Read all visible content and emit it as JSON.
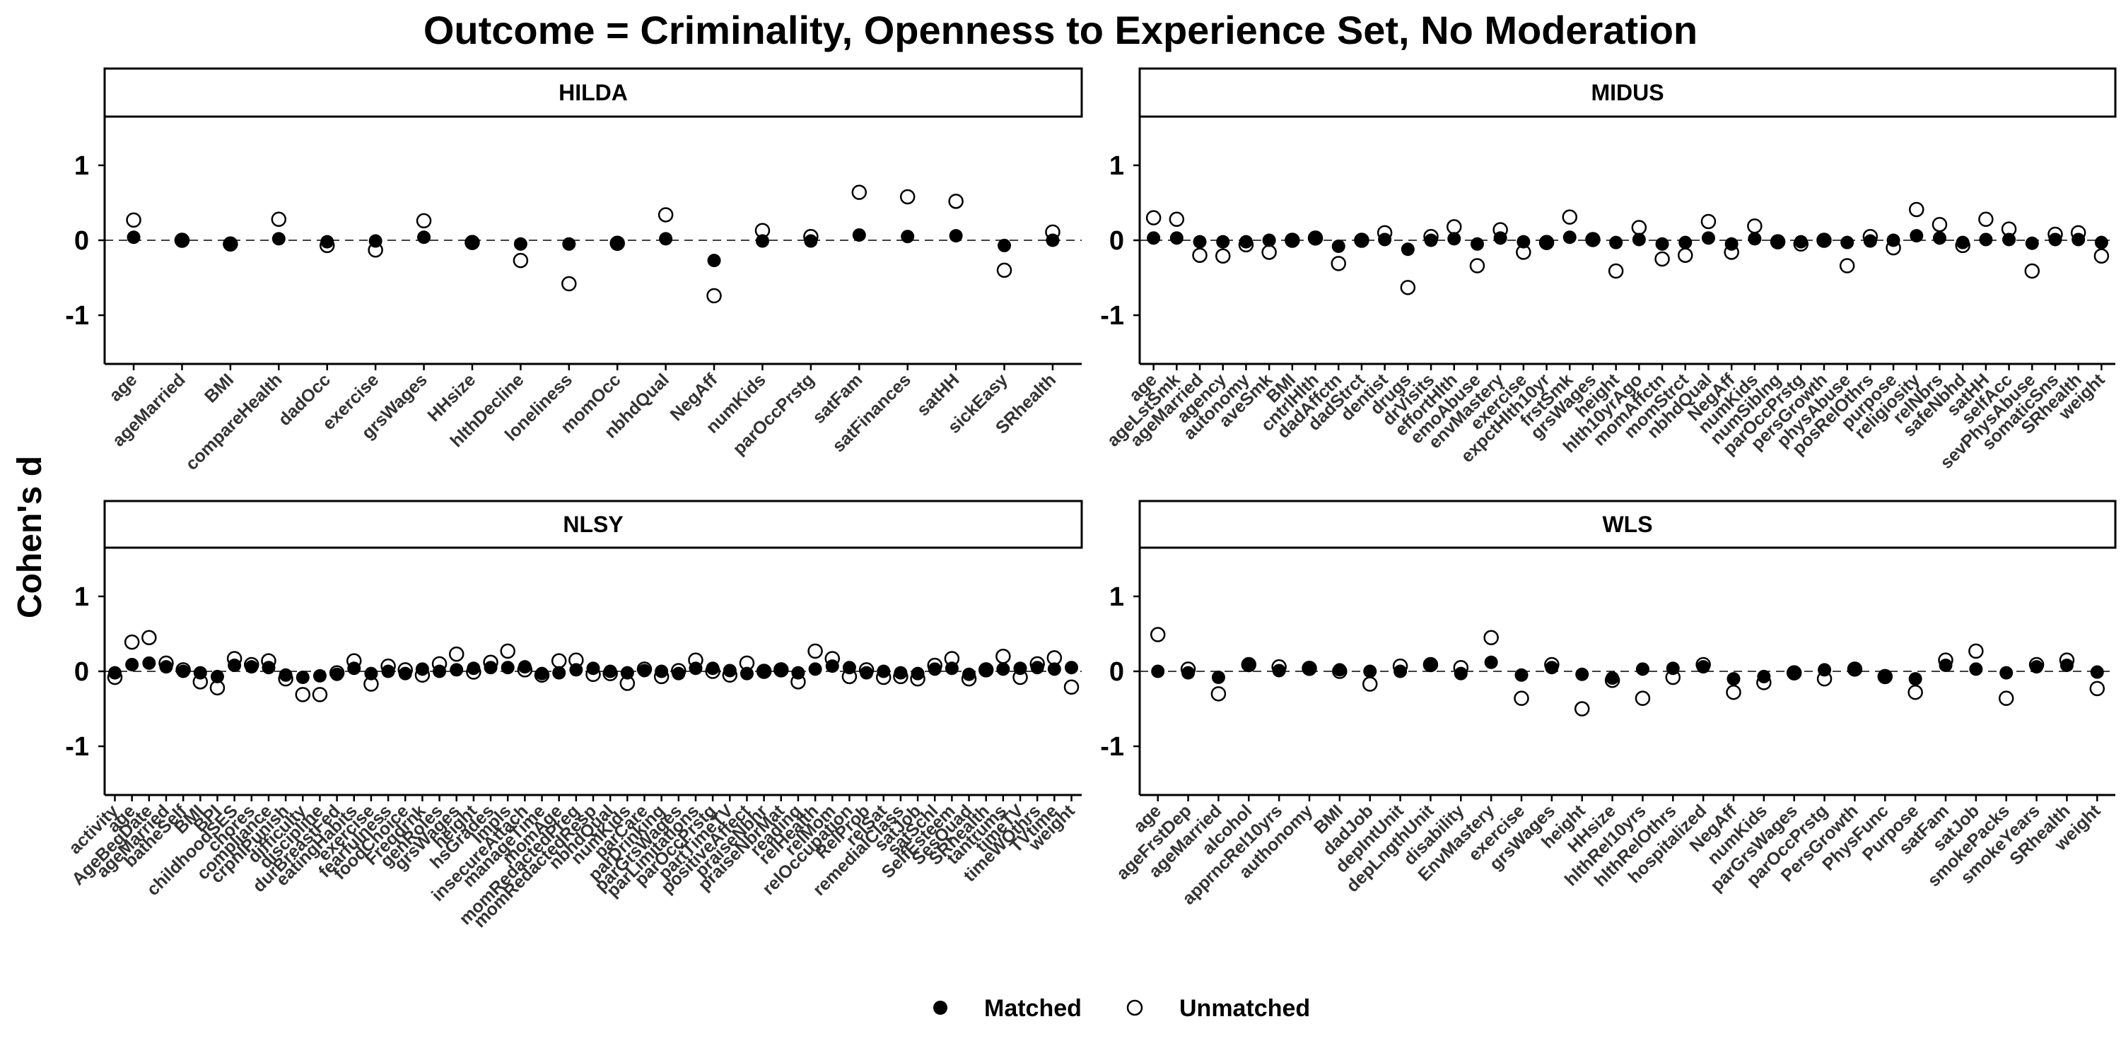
{
  "title": "Outcome = Criminality, Openness to Experience Set, No Moderation",
  "ylabel": "Cohen's d",
  "legend": {
    "matched_label": "Matched",
    "unmatched_label": "Unmatched"
  },
  "chart_data": [
    {
      "type": "scatter",
      "panel": "HILDA",
      "ylim": [
        -1.65,
        1.65
      ],
      "yticks": [
        -1,
        0,
        1
      ],
      "reference_line": 0,
      "categories": [
        "age",
        "ageMarried",
        "BMI",
        "compareHealth",
        "dadOcc",
        "exercise",
        "grsWages",
        "HHsize",
        "hlthDecline",
        "loneliness",
        "momOcc",
        "nbhdQual",
        "NegAff",
        "numKids",
        "parOccPrstg",
        "satFam",
        "satFinances",
        "satHH",
        "sickEasy",
        "SRhealth"
      ],
      "series": [
        {
          "name": "Matched",
          "values": [
            0.04,
            0.0,
            -0.04,
            0.02,
            -0.02,
            -0.01,
            0.04,
            -0.03,
            -0.05,
            -0.05,
            -0.04,
            0.02,
            -0.27,
            -0.01,
            -0.01,
            0.07,
            0.05,
            0.06,
            -0.07,
            0.0
          ]
        },
        {
          "name": "Unmatched",
          "values": [
            0.27,
            0.0,
            -0.05,
            0.28,
            -0.07,
            -0.13,
            0.26,
            -0.03,
            -0.27,
            -0.58,
            -0.04,
            0.34,
            -0.74,
            0.13,
            0.05,
            0.64,
            0.58,
            0.52,
            -0.4,
            0.11
          ]
        }
      ]
    },
    {
      "type": "scatter",
      "panel": "MIDUS",
      "ylim": [
        -1.65,
        1.65
      ],
      "yticks": [
        -1,
        0,
        1
      ],
      "reference_line": 0,
      "categories": [
        "age",
        "ageLstSmk",
        "ageMarried",
        "agency",
        "autonomy",
        "aveSmk",
        "BMI",
        "cntrlHlth",
        "dadAffctn",
        "dadStrct",
        "dentist",
        "drugs",
        "drVisits",
        "effortHlth",
        "emoAbuse",
        "envMastery",
        "exercise",
        "expctHlth10yr",
        "frstSmk",
        "grsWages",
        "height",
        "hlth10yrAgo",
        "momAffctn",
        "momStrct",
        "nbhdQual",
        "NegAff",
        "numKids",
        "numSiblng",
        "parOccPrstg",
        "persGrowth",
        "physAbuse",
        "posRelOthrs",
        "purpose",
        "religiosity",
        "relNbrs",
        "safeNbhd",
        "satHH",
        "selfAcc",
        "sevPhysAbuse",
        "somaticSns",
        "SRhealth",
        "weight"
      ],
      "series": [
        {
          "name": "Matched",
          "values": [
            0.03,
            0.03,
            -0.02,
            -0.02,
            -0.02,
            0.0,
            0.0,
            0.03,
            -0.08,
            0.0,
            0.01,
            -0.12,
            0.0,
            0.02,
            -0.05,
            0.03,
            -0.02,
            -0.03,
            0.04,
            0.01,
            -0.03,
            0.01,
            -0.05,
            -0.03,
            0.03,
            -0.05,
            0.02,
            -0.02,
            -0.02,
            0.0,
            -0.03,
            -0.01,
            0.0,
            0.06,
            0.03,
            -0.03,
            0.01,
            0.01,
            -0.04,
            0.01,
            0.01,
            -0.03
          ]
        },
        {
          "name": "Unmatched",
          "values": [
            0.3,
            0.28,
            -0.2,
            -0.21,
            -0.06,
            -0.16,
            0.0,
            0.03,
            -0.31,
            0.0,
            0.1,
            -0.63,
            0.05,
            0.18,
            -0.34,
            0.14,
            -0.16,
            -0.03,
            0.31,
            0.01,
            -0.41,
            0.17,
            -0.25,
            -0.2,
            0.25,
            -0.16,
            0.19,
            -0.02,
            -0.05,
            0.0,
            -0.34,
            0.05,
            -0.1,
            0.41,
            0.21,
            -0.07,
            0.28,
            0.15,
            -0.41,
            0.08,
            0.1,
            -0.21
          ]
        }
      ]
    },
    {
      "type": "scatter",
      "panel": "NLSY",
      "ylim": [
        -1.65,
        1.65
      ],
      "yticks": [
        -1,
        0,
        1
      ],
      "reference_line": 0,
      "categories": [
        "activity",
        "age",
        "AgeBegDate",
        "ageMarried",
        "batheSelf",
        "BMI",
        "BPI",
        "childhoodSES",
        "chores",
        "compliance",
        "crpnlPunish",
        "difficulty",
        "discipline",
        "durBreastFed",
        "eatingHabits",
        "exercise",
        "fearfulness",
        "foodChoice",
        "Freqdrnk",
        "genRoles",
        "grsWages",
        "height",
        "hsGrades",
        "Impls",
        "insecureAttach",
        "manageTime",
        "momAge",
        "momRedactedPreg",
        "momRedactedResp",
        "nbhdQual",
        "numKids",
        "parCare",
        "parDrinking",
        "parGrsWages",
        "parLimitations",
        "parOccPrstg",
        "partTimeTV",
        "positiveAffect",
        "praiseNbhr",
        "praiseNbrMat",
        "reading",
        "relHealth",
        "relMom",
        "relOccupation",
        "RelProb",
        "relSat",
        "remedialClass",
        "satJob",
        "satSchl",
        "SelfEsteem",
        "SesQuad",
        "SRhealth",
        "tantrums",
        "timeTV",
        "timeWOthrs",
        "TVtime",
        "weight"
      ],
      "series": [
        {
          "name": "Matched",
          "values": [
            -0.02,
            0.09,
            0.11,
            0.06,
            0.0,
            -0.02,
            -0.07,
            0.08,
            0.06,
            0.05,
            -0.05,
            -0.08,
            -0.06,
            -0.04,
            0.04,
            -0.03,
            0.0,
            -0.03,
            0.03,
            0.0,
            0.02,
            0.04,
            0.05,
            0.05,
            0.06,
            -0.03,
            -0.02,
            0.02,
            0.04,
            0.0,
            -0.02,
            0.01,
            0.0,
            -0.03,
            0.04,
            0.04,
            0.01,
            -0.03,
            0.0,
            0.01,
            -0.02,
            0.03,
            0.07,
            0.05,
            -0.02,
            0.0,
            -0.02,
            -0.03,
            0.03,
            0.04,
            -0.04,
            0.02,
            0.03,
            0.04,
            0.05,
            0.03,
            0.05
          ]
        },
        {
          "name": "Unmatched",
          "values": [
            -0.08,
            0.39,
            0.45,
            0.11,
            0.02,
            -0.14,
            -0.22,
            0.17,
            0.09,
            0.14,
            -0.1,
            -0.31,
            -0.31,
            -0.02,
            0.14,
            -0.17,
            0.07,
            0.02,
            -0.05,
            0.1,
            0.23,
            -0.01,
            0.12,
            0.27,
            0.02,
            -0.05,
            0.14,
            0.15,
            -0.04,
            -0.03,
            -0.16,
            0.03,
            -0.07,
            0.01,
            0.15,
            0.0,
            -0.05,
            0.11,
            0.0,
            0.02,
            -0.14,
            0.27,
            0.17,
            -0.07,
            0.02,
            -0.08,
            -0.07,
            -0.1,
            0.08,
            0.17,
            -0.1,
            0.02,
            0.2,
            -0.08,
            0.1,
            0.18,
            -0.21
          ]
        }
      ]
    },
    {
      "type": "scatter",
      "panel": "WLS",
      "ylim": [
        -1.65,
        1.65
      ],
      "yticks": [
        -1,
        0,
        1
      ],
      "reference_line": 0,
      "categories": [
        "age",
        "ageFrstDep",
        "ageMarried",
        "alcohol",
        "apprncRel10yrs",
        "authonomy",
        "BMI",
        "dadJob",
        "depIntUnit",
        "depLngthUnit",
        "disability",
        "EnvMastery",
        "exercise",
        "grsWages",
        "height",
        "HHsize",
        "hlthRel10yrs",
        "hlthRelOthrs",
        "hospitalized",
        "NegAff",
        "numKids",
        "parGrsWages",
        "parOccPrstg",
        "PersGrowth",
        "PhysFunc",
        "Purpose",
        "satFam",
        "satJob",
        "smokePacks",
        "smokeYears",
        "SRhealth",
        "weight"
      ],
      "series": [
        {
          "name": "Matched",
          "values": [
            0.0,
            -0.02,
            -0.08,
            0.09,
            0.01,
            0.04,
            0.02,
            0.0,
            0.0,
            0.09,
            -0.03,
            0.12,
            -0.05,
            0.05,
            -0.04,
            -0.09,
            0.03,
            0.04,
            0.06,
            -0.1,
            -0.07,
            -0.01,
            0.02,
            0.03,
            -0.07,
            -0.1,
            0.08,
            0.03,
            -0.02,
            0.06,
            0.08,
            -0.01
          ]
        },
        {
          "name": "Unmatched",
          "values": [
            0.49,
            0.03,
            -0.3,
            0.09,
            0.06,
            0.04,
            0.0,
            -0.17,
            0.07,
            0.09,
            0.05,
            0.45,
            -0.36,
            0.09,
            -0.5,
            -0.12,
            -0.36,
            -0.08,
            0.09,
            -0.28,
            -0.15,
            -0.02,
            -0.1,
            0.03,
            -0.07,
            -0.28,
            0.15,
            0.27,
            -0.36,
            0.09,
            0.15,
            -0.23
          ]
        }
      ]
    }
  ]
}
